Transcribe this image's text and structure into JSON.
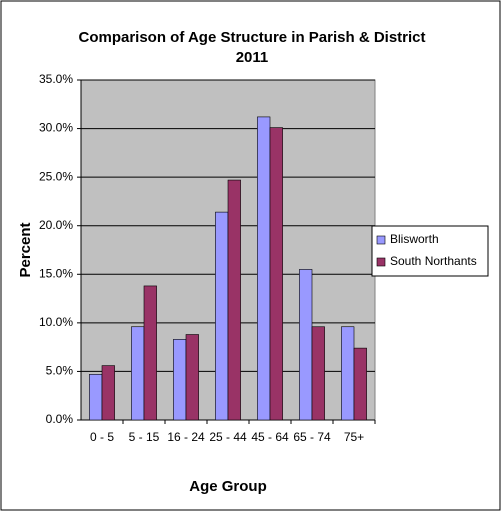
{
  "chart_data": {
    "type": "bar",
    "title": "Comparison of Age Structure in Parish & District",
    "subtitle": "2011",
    "x_label": "Age Group",
    "y_label": "Percent",
    "categories": [
      "0 - 5",
      "5 - 15",
      "16 - 24",
      "25 - 44",
      "45 - 64",
      "65 - 74",
      "75+"
    ],
    "series": [
      {
        "name": "Blisworth",
        "color": "#9999ff",
        "values": [
          4.7,
          9.6,
          8.3,
          21.4,
          31.2,
          15.5,
          9.6
        ]
      },
      {
        "name": "South Northants",
        "color": "#993366",
        "values": [
          5.6,
          13.8,
          8.8,
          24.7,
          30.1,
          9.6,
          7.4
        ]
      }
    ],
    "ylim": [
      0,
      35
    ],
    "yticks": [
      {
        "value": 0,
        "label": "0.0%"
      },
      {
        "value": 5,
        "label": "5.0%"
      },
      {
        "value": 10,
        "label": "10.0%"
      },
      {
        "value": 15,
        "label": "15.0%"
      },
      {
        "value": 20,
        "label": "20.0%"
      },
      {
        "value": 25,
        "label": "25.0%"
      },
      {
        "value": 30,
        "label": "30.0%"
      },
      {
        "value": 35,
        "label": "35.0%"
      }
    ],
    "grid": true,
    "legend": "right",
    "plot_background": "#c0c0c0"
  }
}
